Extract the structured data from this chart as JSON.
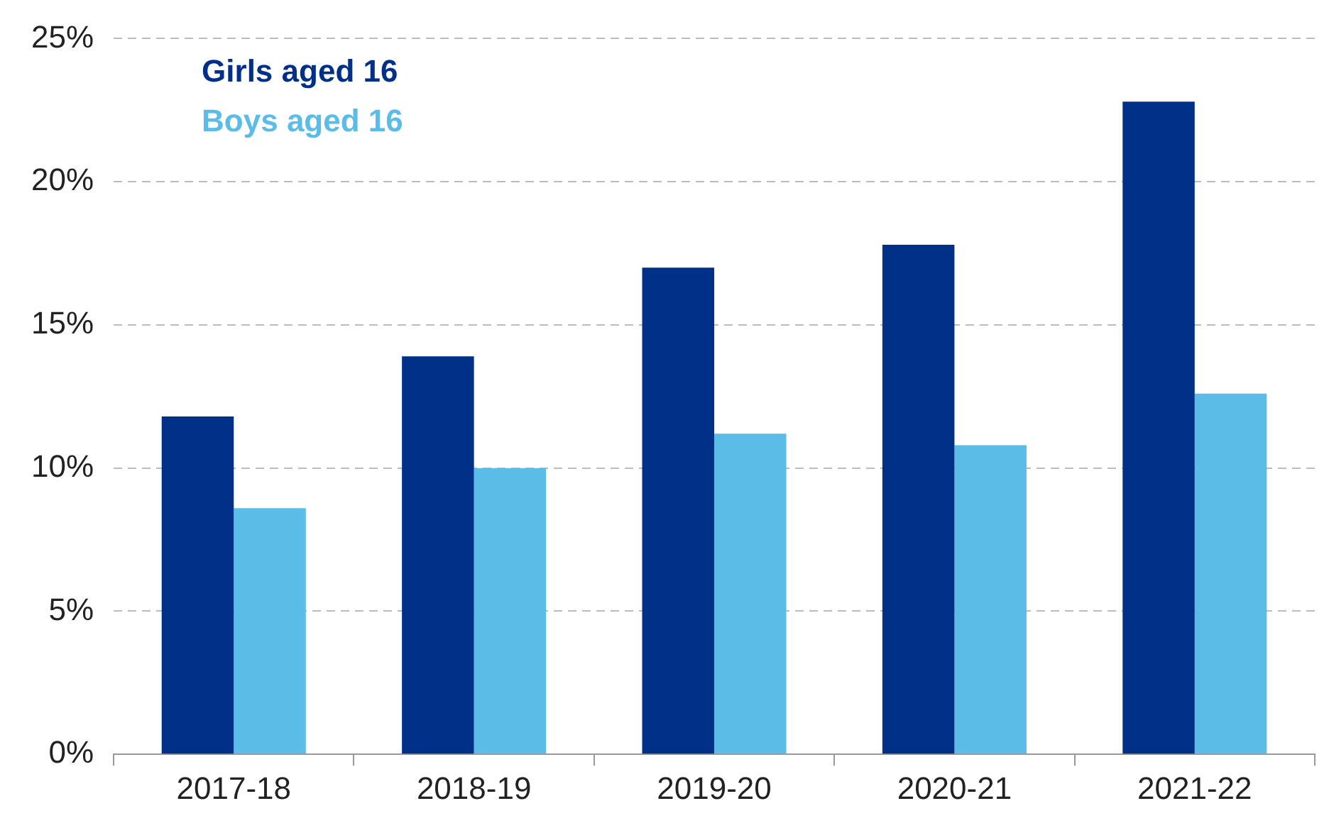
{
  "chart_data": {
    "type": "bar",
    "categories": [
      "2017-18",
      "2018-19",
      "2019-20",
      "2020-21",
      "2021-22"
    ],
    "series": [
      {
        "name": "Girls aged 16",
        "color": "#003087",
        "values": [
          11.8,
          13.9,
          17.0,
          17.8,
          22.8
        ]
      },
      {
        "name": "Boys aged 16",
        "color": "#5bbce8",
        "values": [
          8.6,
          10.0,
          11.2,
          10.8,
          12.6
        ]
      }
    ],
    "ylim": [
      0,
      25
    ],
    "yticks": [
      {
        "value": 0,
        "label": "0%"
      },
      {
        "value": 5,
        "label": "5%"
      },
      {
        "value": 10,
        "label": "10%"
      },
      {
        "value": 15,
        "label": "15%"
      },
      {
        "value": 20,
        "label": "20%"
      },
      {
        "value": 25,
        "label": "25%"
      }
    ],
    "grid": "y",
    "legend": "top left"
  }
}
